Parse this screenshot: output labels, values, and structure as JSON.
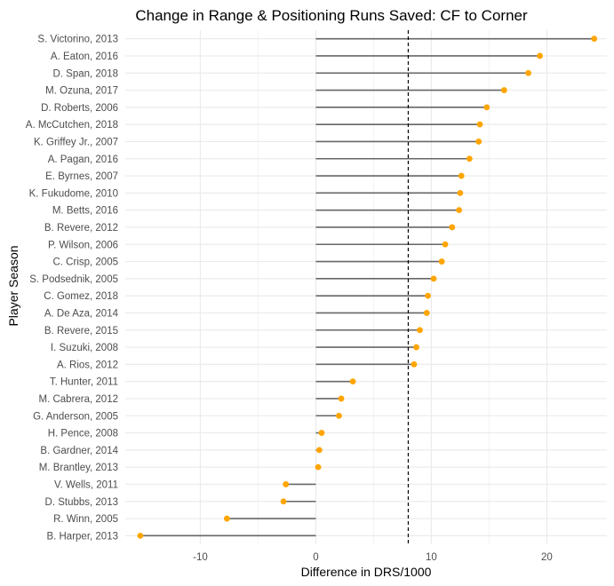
{
  "chart_data": {
    "type": "lollipop",
    "title": "Change in Range & Positioning Runs Saved: CF to Corner",
    "xlabel": "Difference in DRS/1000",
    "ylabel": "Player Season",
    "xlim": [
      -16.5,
      25.2
    ],
    "x_ticks": [
      -10,
      0,
      10,
      20
    ],
    "x_tick_labels": [
      "-10",
      "0",
      "10",
      "20"
    ],
    "reference_line": 8,
    "grid": true,
    "colors": {
      "segment": "#666666",
      "point": "#FFA500",
      "grid": "#EBEBEB",
      "refline": "#000000"
    },
    "categories": [
      "S. Victorino, 2013",
      "A. Eaton, 2016",
      "D. Span, 2018",
      "M. Ozuna, 2017",
      "D. Roberts, 2006",
      "A. McCutchen, 2018",
      "K. Griffey Jr., 2007",
      "A. Pagan, 2016",
      "E. Byrnes, 2007",
      "K. Fukudome, 2010",
      "M. Betts, 2016",
      "B. Revere, 2012",
      "P. Wilson, 2006",
      "C. Crisp, 2005",
      "S. Podsednik, 2005",
      "C. Gomez, 2018",
      "A. De Aza, 2014",
      "B. Revere, 2015",
      "I. Suzuki, 2008",
      "A. Rios, 2012",
      "T. Hunter, 2011",
      "M. Cabrera, 2012",
      "G. Anderson, 2005",
      "H. Pence, 2008",
      "B. Gardner, 2014",
      "M. Brantley, 2013",
      "V. Wells, 2011",
      "D. Stubbs, 2013",
      "R. Winn, 2005",
      "B. Harper, 2013"
    ],
    "values": [
      24.1,
      19.4,
      18.4,
      16.3,
      14.8,
      14.2,
      14.1,
      13.3,
      12.6,
      12.5,
      12.4,
      11.8,
      11.2,
      10.9,
      10.2,
      9.7,
      9.6,
      9.0,
      8.7,
      8.5,
      3.2,
      2.2,
      2.0,
      0.5,
      0.3,
      0.2,
      -2.6,
      -2.8,
      -7.7,
      -15.2
    ]
  }
}
